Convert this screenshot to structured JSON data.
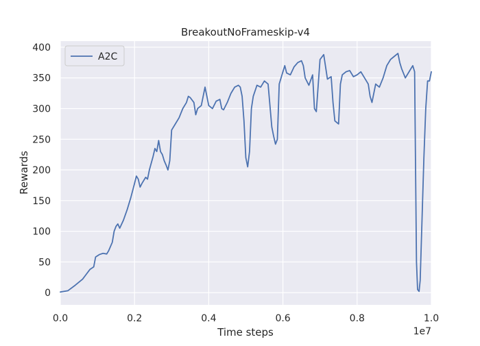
{
  "chart_data": {
    "type": "line",
    "title": "BreakoutNoFrameskip-v4",
    "xlabel": "Time steps",
    "ylabel": "Rewards",
    "x_offset_label": "1e7",
    "xlim": [
      0,
      1.0
    ],
    "ylim": [
      -20,
      410
    ],
    "x_ticks": [
      0.0,
      0.2,
      0.4,
      0.6,
      0.8,
      1.0
    ],
    "x_tick_labels": [
      "0.0",
      "0.2",
      "0.4",
      "0.6",
      "0.8",
      "1.0"
    ],
    "y_ticks": [
      0,
      50,
      100,
      150,
      200,
      250,
      300,
      350,
      400
    ],
    "y_tick_labels": [
      "0",
      "50",
      "100",
      "150",
      "200",
      "250",
      "300",
      "350",
      "400"
    ],
    "grid": true,
    "legend_position": "top-left",
    "series": [
      {
        "name": "A2C",
        "color": "#4c72b0",
        "points": [
          [
            0.0,
            1
          ],
          [
            0.02,
            3
          ],
          [
            0.04,
            12
          ],
          [
            0.06,
            22
          ],
          [
            0.07,
            30
          ],
          [
            0.08,
            38
          ],
          [
            0.09,
            42
          ],
          [
            0.095,
            58
          ],
          [
            0.105,
            62
          ],
          [
            0.115,
            64
          ],
          [
            0.125,
            63
          ],
          [
            0.13,
            68
          ],
          [
            0.14,
            82
          ],
          [
            0.145,
            100
          ],
          [
            0.15,
            108
          ],
          [
            0.155,
            112
          ],
          [
            0.16,
            105
          ],
          [
            0.17,
            118
          ],
          [
            0.18,
            135
          ],
          [
            0.19,
            155
          ],
          [
            0.2,
            178
          ],
          [
            0.205,
            190
          ],
          [
            0.21,
            185
          ],
          [
            0.215,
            172
          ],
          [
            0.22,
            178
          ],
          [
            0.23,
            188
          ],
          [
            0.235,
            185
          ],
          [
            0.24,
            200
          ],
          [
            0.25,
            222
          ],
          [
            0.255,
            235
          ],
          [
            0.26,
            230
          ],
          [
            0.265,
            248
          ],
          [
            0.27,
            230
          ],
          [
            0.275,
            225
          ],
          [
            0.28,
            215
          ],
          [
            0.285,
            208
          ],
          [
            0.29,
            200
          ],
          [
            0.295,
            215
          ],
          [
            0.3,
            265
          ],
          [
            0.31,
            275
          ],
          [
            0.32,
            285
          ],
          [
            0.33,
            300
          ],
          [
            0.34,
            310
          ],
          [
            0.345,
            320
          ],
          [
            0.35,
            318
          ],
          [
            0.36,
            310
          ],
          [
            0.365,
            290
          ],
          [
            0.37,
            300
          ],
          [
            0.38,
            305
          ],
          [
            0.385,
            320
          ],
          [
            0.39,
            335
          ],
          [
            0.395,
            320
          ],
          [
            0.4,
            305
          ],
          [
            0.41,
            300
          ],
          [
            0.42,
            312
          ],
          [
            0.43,
            315
          ],
          [
            0.435,
            300
          ],
          [
            0.44,
            298
          ],
          [
            0.45,
            310
          ],
          [
            0.46,
            325
          ],
          [
            0.47,
            335
          ],
          [
            0.48,
            338
          ],
          [
            0.485,
            335
          ],
          [
            0.49,
            320
          ],
          [
            0.495,
            280
          ],
          [
            0.5,
            220
          ],
          [
            0.505,
            205
          ],
          [
            0.51,
            230
          ],
          [
            0.515,
            300
          ],
          [
            0.52,
            320
          ],
          [
            0.53,
            338
          ],
          [
            0.54,
            335
          ],
          [
            0.55,
            345
          ],
          [
            0.56,
            340
          ],
          [
            0.57,
            270
          ],
          [
            0.575,
            255
          ],
          [
            0.58,
            242
          ],
          [
            0.585,
            250
          ],
          [
            0.59,
            340
          ],
          [
            0.6,
            360
          ],
          [
            0.605,
            370
          ],
          [
            0.61,
            358
          ],
          [
            0.62,
            355
          ],
          [
            0.63,
            368
          ],
          [
            0.64,
            375
          ],
          [
            0.65,
            378
          ],
          [
            0.655,
            370
          ],
          [
            0.66,
            350
          ],
          [
            0.67,
            338
          ],
          [
            0.68,
            355
          ],
          [
            0.685,
            300
          ],
          [
            0.69,
            295
          ],
          [
            0.7,
            380
          ],
          [
            0.71,
            388
          ],
          [
            0.72,
            348
          ],
          [
            0.73,
            352
          ],
          [
            0.735,
            310
          ],
          [
            0.74,
            280
          ],
          [
            0.75,
            275
          ],
          [
            0.755,
            340
          ],
          [
            0.76,
            355
          ],
          [
            0.77,
            360
          ],
          [
            0.78,
            362
          ],
          [
            0.79,
            352
          ],
          [
            0.8,
            355
          ],
          [
            0.81,
            360
          ],
          [
            0.82,
            350
          ],
          [
            0.83,
            340
          ],
          [
            0.835,
            320
          ],
          [
            0.84,
            310
          ],
          [
            0.85,
            340
          ],
          [
            0.86,
            335
          ],
          [
            0.87,
            350
          ],
          [
            0.88,
            370
          ],
          [
            0.89,
            380
          ],
          [
            0.9,
            385
          ],
          [
            0.91,
            390
          ],
          [
            0.915,
            375
          ],
          [
            0.92,
            365
          ],
          [
            0.93,
            350
          ],
          [
            0.94,
            360
          ],
          [
            0.95,
            370
          ],
          [
            0.955,
            360
          ],
          [
            0.96,
            50
          ],
          [
            0.963,
            5
          ],
          [
            0.967,
            2
          ],
          [
            0.97,
            20
          ],
          [
            0.975,
            120
          ],
          [
            0.98,
            220
          ],
          [
            0.985,
            300
          ],
          [
            0.99,
            345
          ],
          [
            0.995,
            345
          ],
          [
            1.0,
            360
          ]
        ]
      }
    ]
  }
}
